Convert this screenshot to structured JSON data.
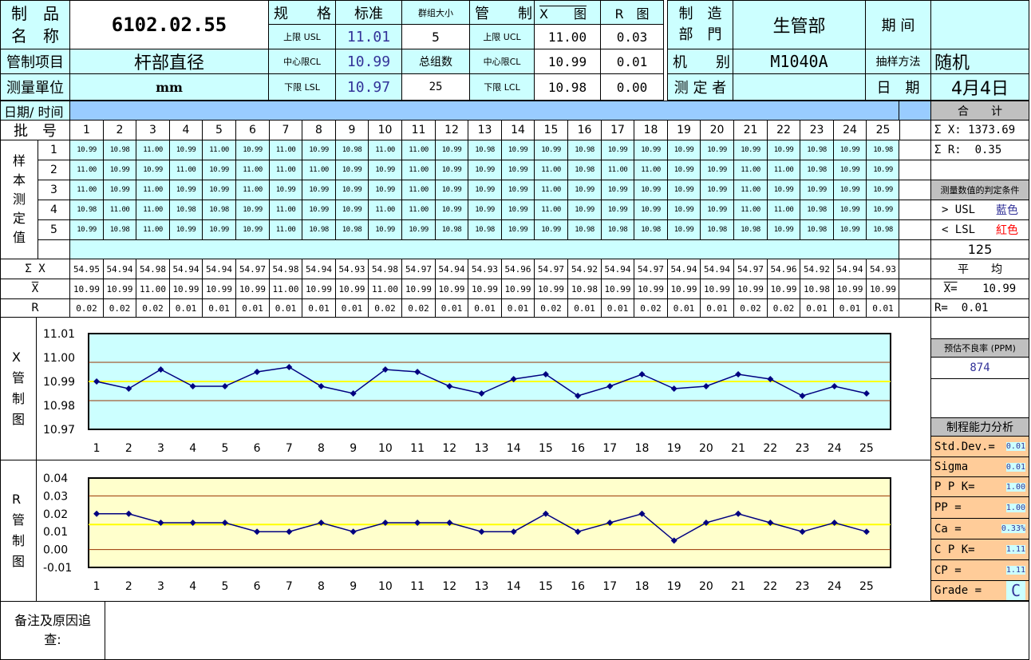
{
  "header": {
    "product_name_label": "制　品\n名　称",
    "product_name": "6102.02.55",
    "spec_label": "规　　格",
    "standard_label": "标准",
    "subgroup_size_label": "群组大小",
    "control_label": "管　　制",
    "xbar_chart_label": "X　　图",
    "r_chart_label": "R　图",
    "usl_label": "上限 USL",
    "usl": "11.01",
    "subgroup_size": "5",
    "ucl_label": "上限 UCL",
    "x_ucl": "11.00",
    "r_ucl": "0.03",
    "cl_label": "中心限CL",
    "cl": "10.99",
    "total_groups_label": "总组数",
    "x_cl": "10.99",
    "r_cl": "0.01",
    "lsl_label": "下限 LSL",
    "lsl": "10.97",
    "total_groups": "25",
    "lcl_label": "下限 LCL",
    "x_lcl": "10.98",
    "r_lcl": "0.00",
    "control_item_label": "管制项目",
    "control_item": "杆部直径",
    "unit_label": "测量單位",
    "unit": "mm",
    "dept_label": "制　造\n部　門",
    "dept": "生管部",
    "machine_label": "机　　别",
    "machine": "M1040A",
    "measurer_label": "测 定 者",
    "measurer": "",
    "period_label": "期 间",
    "period": "",
    "sampling_label": "抽样方法",
    "sampling": "随机",
    "date_label": "日　期",
    "date": "4月4日"
  },
  "table": {
    "date_time_label": "日期/ 时间",
    "batch_label": "批　号",
    "sample_label": "样\n本\n测\n定\n值",
    "batch_numbers": [
      "1",
      "2",
      "3",
      "4",
      "5",
      "6",
      "7",
      "8",
      "9",
      "10",
      "11",
      "12",
      "13",
      "14",
      "15",
      "16",
      "17",
      "18",
      "19",
      "20",
      "21",
      "22",
      "23",
      "24",
      "25"
    ],
    "sample_row_labels": [
      "1",
      "2",
      "3",
      "4",
      "5"
    ],
    "samples": [
      [
        "10.99",
        "10.98",
        "11.00",
        "10.99",
        "11.00",
        "10.99",
        "11.00",
        "10.99",
        "10.98",
        "11.00",
        "11.00",
        "10.99",
        "10.98",
        "10.99",
        "10.99",
        "10.98",
        "10.99",
        "10.99",
        "10.99",
        "10.99",
        "10.99",
        "10.99",
        "10.98",
        "10.99",
        "10.98"
      ],
      [
        "11.00",
        "10.99",
        "10.99",
        "11.00",
        "10.99",
        "11.00",
        "11.00",
        "11.00",
        "10.99",
        "10.99",
        "11.00",
        "10.99",
        "10.99",
        "10.99",
        "11.00",
        "10.98",
        "11.00",
        "11.00",
        "10.99",
        "10.99",
        "11.00",
        "11.00",
        "10.98",
        "10.99",
        "10.99"
      ],
      [
        "11.00",
        "10.99",
        "11.00",
        "10.99",
        "10.99",
        "11.00",
        "10.99",
        "10.99",
        "10.99",
        "10.99",
        "11.00",
        "10.99",
        "10.99",
        "10.99",
        "11.00",
        "10.99",
        "10.99",
        "10.99",
        "10.99",
        "10.99",
        "11.00",
        "10.99",
        "10.99",
        "10.99",
        "10.99"
      ],
      [
        "10.98",
        "11.00",
        "11.00",
        "10.98",
        "10.98",
        "10.99",
        "11.00",
        "10.99",
        "10.99",
        "11.00",
        "11.00",
        "10.99",
        "10.99",
        "10.99",
        "11.00",
        "10.99",
        "10.99",
        "10.99",
        "10.99",
        "10.99",
        "11.00",
        "11.00",
        "10.98",
        "10.99",
        "10.99"
      ],
      [
        "10.99",
        "10.98",
        "11.00",
        "10.99",
        "10.99",
        "10.99",
        "11.00",
        "10.98",
        "10.98",
        "10.99",
        "10.99",
        "10.98",
        "10.98",
        "10.99",
        "10.99",
        "10.98",
        "10.98",
        "10.98",
        "10.99",
        "10.98",
        "10.98",
        "10.99",
        "10.98",
        "10.99",
        "10.98"
      ]
    ],
    "sum_x_label": "Σ X",
    "sum_x": [
      "54.95",
      "54.94",
      "54.98",
      "54.94",
      "54.94",
      "54.97",
      "54.98",
      "54.94",
      "54.93",
      "54.98",
      "54.97",
      "54.94",
      "54.93",
      "54.96",
      "54.97",
      "54.92",
      "54.94",
      "54.97",
      "54.94",
      "54.94",
      "54.97",
      "54.96",
      "54.92",
      "54.94",
      "54.93"
    ],
    "xbar_label": "X",
    "xbar": [
      "10.99",
      "10.99",
      "11.00",
      "10.99",
      "10.99",
      "10.99",
      "11.00",
      "10.99",
      "10.99",
      "11.00",
      "10.99",
      "10.99",
      "10.99",
      "10.99",
      "10.99",
      "10.98",
      "10.99",
      "10.99",
      "10.99",
      "10.99",
      "10.99",
      "10.99",
      "10.98",
      "10.99",
      "10.99"
    ],
    "r_label": "R",
    "r": [
      "0.02",
      "0.02",
      "0.02",
      "0.01",
      "0.01",
      "0.01",
      "0.01",
      "0.01",
      "0.01",
      "0.02",
      "0.02",
      "0.01",
      "0.01",
      "0.01",
      "0.02",
      "0.01",
      "0.01",
      "0.02",
      "0.01",
      "0.01",
      "0.02",
      "0.02",
      "0.01",
      "0.01",
      "0.01"
    ]
  },
  "summary": {
    "total_label": "合　　计",
    "sum_x_label": "Σ X:",
    "sum_x": "1373.69",
    "sum_r_label": "Σ R:",
    "sum_r": "0.35",
    "criteria_label": "测量数值的判定条件",
    "gt_label": ">  USL",
    "gt_color": "藍色",
    "lt_label": "<  LSL",
    "lt_color": "紅色",
    "count": "125",
    "avg_label": "平　　均",
    "xbar_avg_label": "X=",
    "xbar_avg": "10.99",
    "r_avg_label": "R=",
    "r_avg": "0.01",
    "ppm_label": "预估不良率 (PPM)",
    "ppm": "874",
    "capability_label": "制程能力分析",
    "capability": [
      {
        "label": "Std.Dev.=",
        "value": "0.01"
      },
      {
        "label": "Sigma",
        "value": "0.01"
      },
      {
        "label": "P P K=",
        "value": "1.00"
      },
      {
        "label": "PP =",
        "value": "1.00"
      },
      {
        "label": "Ca =",
        "value": "0.33%"
      },
      {
        "label": "C P K=",
        "value": "1.11"
      },
      {
        "label": "CP =",
        "value": "1.11"
      }
    ],
    "grade_label": "Grade =",
    "grade": "C"
  },
  "charts": {
    "xbar_title": "X\n管\n制\n图",
    "r_title": "R\n管\n制\n图"
  },
  "remarks": {
    "label": "备注及原因追\n查:",
    "text": ""
  },
  "chart_data": [
    {
      "type": "line",
      "x": [
        1,
        2,
        3,
        4,
        5,
        6,
        7,
        8,
        9,
        10,
        11,
        12,
        13,
        14,
        15,
        16,
        17,
        18,
        19,
        20,
        21,
        22,
        23,
        24,
        25
      ],
      "values": [
        10.99,
        10.987,
        10.995,
        10.988,
        10.988,
        10.994,
        10.996,
        10.988,
        10.985,
        10.995,
        10.994,
        10.988,
        10.985,
        10.991,
        10.993,
        10.984,
        10.988,
        10.993,
        10.987,
        10.988,
        10.993,
        10.991,
        10.984,
        10.988,
        10.985
      ],
      "ucl": 10.998,
      "cl": 10.99,
      "lcl": 10.982,
      "ylim": [
        10.97,
        11.01
      ],
      "yticks": [
        "11.01",
        "11.00",
        "10.99",
        "10.98",
        "10.97"
      ],
      "colors": {
        "bg": "#ccffff",
        "line": "#000080",
        "limit": "#993300",
        "center": "#ffff00"
      }
    },
    {
      "type": "line",
      "x": [
        1,
        2,
        3,
        4,
        5,
        6,
        7,
        8,
        9,
        10,
        11,
        12,
        13,
        14,
        15,
        16,
        17,
        18,
        19,
        20,
        21,
        22,
        23,
        24,
        25
      ],
      "values": [
        0.02,
        0.02,
        0.015,
        0.015,
        0.015,
        0.01,
        0.01,
        0.015,
        0.01,
        0.015,
        0.015,
        0.015,
        0.01,
        0.01,
        0.02,
        0.01,
        0.015,
        0.02,
        0.005,
        0.015,
        0.02,
        0.015,
        0.01,
        0.015,
        0.01
      ],
      "ucl": 0.03,
      "cl": 0.014,
      "lcl": 0.0,
      "ylim": [
        -0.01,
        0.04
      ],
      "yticks": [
        "0.04",
        "0.03",
        "0.02",
        "0.01",
        "0.00",
        "-0.01"
      ],
      "colors": {
        "bg": "#ffffcc",
        "line": "#000080",
        "limit": "#993300",
        "center": "#ffff00"
      }
    }
  ]
}
